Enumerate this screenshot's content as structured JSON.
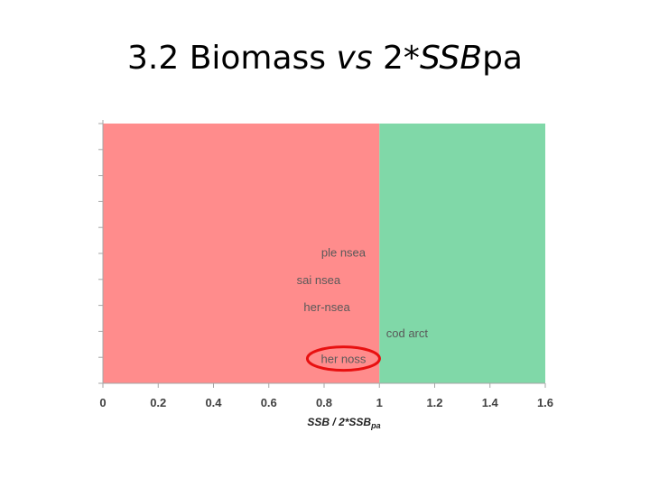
{
  "slide": {
    "title_prefix": "3.2  Biomass ",
    "title_vs": "vs",
    "title_mid": " 2*",
    "title_ssb": "SSB",
    "title_suffix": "pa"
  },
  "chart_data": {
    "type": "scatter",
    "title": "3.2  Biomass vs 2*SSBpa",
    "xlabel": "SSB / 2*SSBpa",
    "xlabel_parts": {
      "main": "SSB / 2*SSB",
      "sub": "pa"
    },
    "xlim": [
      0,
      1.6
    ],
    "xticks": [
      0,
      0.2,
      0.4,
      0.6,
      0.8,
      1,
      1.2,
      1.4,
      1.6
    ],
    "xtick_labels": [
      "0",
      "0.2",
      "0.4",
      "0.6",
      "0.8",
      "1",
      "1.2",
      "1.4",
      "1.6"
    ],
    "ylim": [
      0,
      10
    ],
    "y_tick_count": 10,
    "grid": false,
    "regions": [
      {
        "x0": 0,
        "x1": 1.0,
        "color": "#ff8c8c"
      },
      {
        "x0": 1.0,
        "x1": 1.6,
        "color": "#80d8a8"
      }
    ],
    "points": [
      {
        "label": "ple nsea",
        "x": 0.87,
        "y": 5.05
      },
      {
        "label": "sai nsea",
        "x": 0.78,
        "y": 4.0
      },
      {
        "label": "her-nsea",
        "x": 0.81,
        "y": 2.95
      },
      {
        "label": "cod arct",
        "x": 1.1,
        "y": 1.95
      },
      {
        "label": "her noss",
        "x": 0.87,
        "y": 0.95
      }
    ],
    "highlight": {
      "label": "her noss",
      "color": "#e81010"
    }
  }
}
